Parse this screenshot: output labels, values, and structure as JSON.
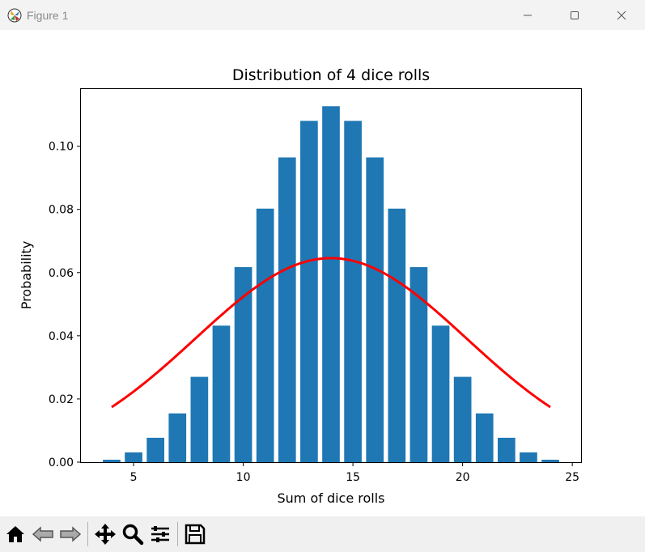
{
  "window": {
    "title": "Figure 1",
    "controls": {
      "minimize": "—",
      "maximize": "☐",
      "close": "✕"
    }
  },
  "toolbar": {
    "items": [
      {
        "name": "home-icon"
      },
      {
        "name": "back-icon"
      },
      {
        "name": "forward-icon"
      },
      {
        "name": "pan-icon"
      },
      {
        "name": "zoom-icon"
      },
      {
        "name": "configure-subplots-icon"
      },
      {
        "name": "save-icon"
      }
    ]
  },
  "chart_data": {
    "type": "bar",
    "title": "Distribution of 4 dice rolls",
    "xlabel": "Sum of dice rolls",
    "ylabel": "Probability",
    "xlim": [
      2.6,
      25.4
    ],
    "ylim": [
      0,
      0.1181
    ],
    "xticks": [
      5,
      10,
      15,
      20,
      25
    ],
    "xtick_labels": [
      "5",
      "10",
      "15",
      "20",
      "25"
    ],
    "yticks": [
      0.0,
      0.02,
      0.04,
      0.06,
      0.08,
      0.1
    ],
    "ytick_labels": [
      "0.00",
      "0.02",
      "0.04",
      "0.06",
      "0.08",
      "0.10"
    ],
    "grid": false,
    "bar_color": "#1f77b4",
    "bar_width": 0.8,
    "categories": [
      4,
      5,
      6,
      7,
      8,
      9,
      10,
      11,
      12,
      13,
      14,
      15,
      16,
      17,
      18,
      19,
      20,
      21,
      22,
      23,
      24
    ],
    "values": [
      0.000772,
      0.003086,
      0.007716,
      0.015432,
      0.027006,
      0.04321,
      0.061728,
      0.080247,
      0.096451,
      0.108025,
      0.112654,
      0.108025,
      0.096451,
      0.080247,
      0.061728,
      0.04321,
      0.027006,
      0.015432,
      0.007716,
      0.003086,
      0.000772
    ],
    "curve": {
      "type": "line",
      "color": "#ff0000",
      "x_start": 4,
      "x_end": 24,
      "mean": 14,
      "std": 6.1779
    }
  }
}
